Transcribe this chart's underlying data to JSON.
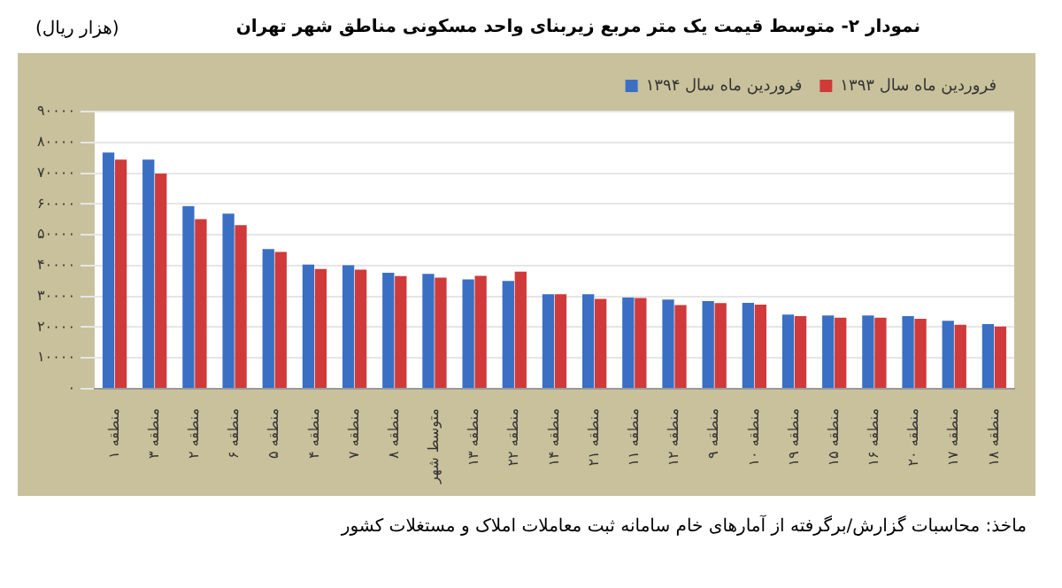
{
  "chart_data": {
    "type": "bar",
    "title": "نمودار ۲- متوسط قیمت یک متر مربع زیربنای واحد مسکونی مناطق شهر تهران",
    "ylabel": "(هزار ریال)",
    "annotations": [
      "ماخذ: محاسبات گزارش/برگرفته از آمارهای خام سامانه ثبت معاملات املاک و مستغلات کشور"
    ],
    "categories": [
      "منطقه ۱",
      "منطقه ۳",
      "منطقه ۲",
      "منطقه ۶",
      "منطقه ۵",
      "منطقه ۴",
      "منطقه ۷",
      "منطقه ۸",
      "متوسط شهر",
      "منطقه ۱۳",
      "منطقه ۲۲",
      "منطقه ۱۴",
      "منطقه ۲۱",
      "منطقه ۱۱",
      "منطقه ۱۲",
      "منطقه ۹",
      "منطقه ۱۰",
      "منطقه ۱۹",
      "منطقه ۱۵",
      "منطقه ۱۶",
      "منطقه ۲۰",
      "منطقه ۱۷",
      "منطقه ۱۸"
    ],
    "series": [
      {
        "name": "فروردین ماه سال ۱۳۹۴",
        "color": "#3a6fc4",
        "values": [
          76700,
          74400,
          59300,
          56900,
          45400,
          40300,
          40100,
          37700,
          37300,
          35500,
          35000,
          30700,
          30700,
          29600,
          29000,
          28500,
          27900,
          24100,
          23800,
          23800,
          23600,
          22100,
          21000
        ]
      },
      {
        "name": "فروردین ماه سال ۱۳۹۳",
        "color": "#d03a3a",
        "values": [
          74400,
          69900,
          55100,
          53100,
          44400,
          38900,
          38700,
          36600,
          36100,
          36700,
          38000,
          30700,
          29200,
          29500,
          27200,
          27800,
          27300,
          23600,
          23100,
          23100,
          22700,
          20800,
          20200
        ]
      }
    ],
    "ylim": [
      0,
      90000
    ],
    "yticks": [
      {
        "value": 0,
        "label": "۰"
      },
      {
        "value": 10000,
        "label": "۱۰۰۰۰"
      },
      {
        "value": 20000,
        "label": "۲۰۰۰۰"
      },
      {
        "value": 30000,
        "label": "۳۰۰۰۰"
      },
      {
        "value": 40000,
        "label": "۴۰۰۰۰"
      },
      {
        "value": 50000,
        "label": "۵۰۰۰۰"
      },
      {
        "value": 60000,
        "label": "۶۰۰۰۰"
      },
      {
        "value": 70000,
        "label": "۷۰۰۰۰"
      },
      {
        "value": 80000,
        "label": "۸۰۰۰۰"
      },
      {
        "value": 90000,
        "label": "۹۰۰۰۰"
      }
    ],
    "grid": "y",
    "legend": "top right"
  }
}
